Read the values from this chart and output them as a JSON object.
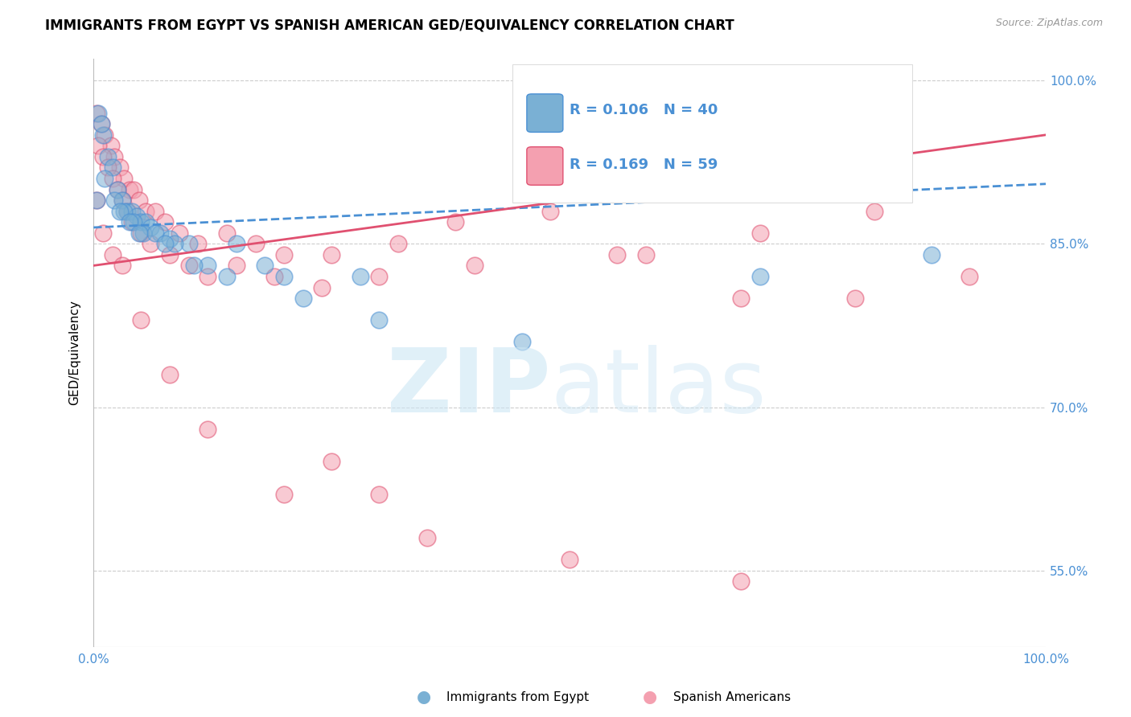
{
  "title": "IMMIGRANTS FROM EGYPT VS SPANISH AMERICAN GED/EQUIVALENCY CORRELATION CHART",
  "source": "Source: ZipAtlas.com",
  "ylabel": "GED/Equivalency",
  "legend_blue_r": "R = 0.106",
  "legend_blue_n": "N = 40",
  "legend_pink_r": "R = 0.169",
  "legend_pink_n": "N = 59",
  "legend_label_blue": "Immigrants from Egypt",
  "legend_label_pink": "Spanish Americans",
  "xlim": [
    0,
    100
  ],
  "ylim": [
    48,
    102
  ],
  "yticks": [
    55,
    70,
    85,
    100
  ],
  "ytick_labels": [
    "55.0%",
    "70.0%",
    "85.0%",
    "100.0%"
  ],
  "color_blue": "#7ab0d4",
  "color_pink": "#f4a0b0",
  "color_blue_line": "#4a90d4",
  "color_pink_line": "#e05070",
  "color_tick_label": "#4a90d4",
  "blue_x": [
    0.5,
    1.0,
    1.5,
    2.0,
    2.5,
    3.0,
    3.5,
    4.0,
    4.5,
    5.0,
    5.5,
    6.0,
    7.0,
    8.0,
    10.0,
    12.0,
    15.0,
    18.0,
    22.0,
    28.0,
    0.8,
    1.2,
    2.2,
    3.2,
    4.2,
    5.2,
    6.5,
    8.5,
    10.5,
    14.0,
    20.0,
    30.0,
    45.0,
    70.0,
    88.0,
    0.3,
    2.8,
    3.8,
    4.8,
    7.5
  ],
  "blue_y": [
    97.0,
    95.0,
    93.0,
    92.0,
    90.0,
    89.0,
    88.0,
    88.0,
    87.5,
    87.0,
    87.0,
    86.5,
    86.0,
    85.5,
    85.0,
    83.0,
    85.0,
    83.0,
    80.0,
    82.0,
    96.0,
    91.0,
    89.0,
    88.0,
    87.0,
    86.0,
    86.0,
    85.0,
    83.0,
    82.0,
    82.0,
    78.0,
    76.0,
    82.0,
    84.0,
    89.0,
    88.0,
    87.0,
    86.0,
    85.0
  ],
  "pink_x": [
    0.3,
    0.8,
    1.2,
    1.8,
    2.2,
    2.8,
    3.2,
    3.8,
    4.2,
    4.8,
    5.5,
    6.5,
    7.5,
    9.0,
    11.0,
    14.0,
    17.0,
    20.0,
    25.0,
    32.0,
    38.0,
    48.0,
    58.0,
    70.0,
    82.0,
    0.5,
    1.0,
    1.5,
    2.0,
    2.5,
    3.0,
    3.5,
    4.0,
    5.0,
    6.0,
    8.0,
    10.0,
    12.0,
    15.0,
    19.0,
    24.0,
    30.0,
    40.0,
    55.0,
    68.0,
    80.0,
    92.0,
    0.3,
    1.0,
    2.0,
    3.0,
    5.0,
    8.0,
    12.0,
    20.0,
    35.0,
    50.0,
    68.0,
    25.0,
    30.0
  ],
  "pink_y": [
    97.0,
    96.0,
    95.0,
    94.0,
    93.0,
    92.0,
    91.0,
    90.0,
    90.0,
    89.0,
    88.0,
    88.0,
    87.0,
    86.0,
    85.0,
    86.0,
    85.0,
    84.0,
    84.0,
    85.0,
    87.0,
    88.0,
    84.0,
    86.0,
    88.0,
    94.0,
    93.0,
    92.0,
    91.0,
    90.0,
    89.0,
    88.0,
    87.0,
    86.0,
    85.0,
    84.0,
    83.0,
    82.0,
    83.0,
    82.0,
    81.0,
    82.0,
    83.0,
    84.0,
    80.0,
    80.0,
    82.0,
    89.0,
    86.0,
    84.0,
    83.0,
    78.0,
    73.0,
    68.0,
    62.0,
    58.0,
    56.0,
    54.0,
    65.0,
    62.0
  ],
  "blue_trendline_x": [
    0,
    100
  ],
  "blue_trendline_y": [
    86.5,
    90.5
  ],
  "pink_trendline_x": [
    0,
    100
  ],
  "pink_trendline_y": [
    83.0,
    95.0
  ]
}
